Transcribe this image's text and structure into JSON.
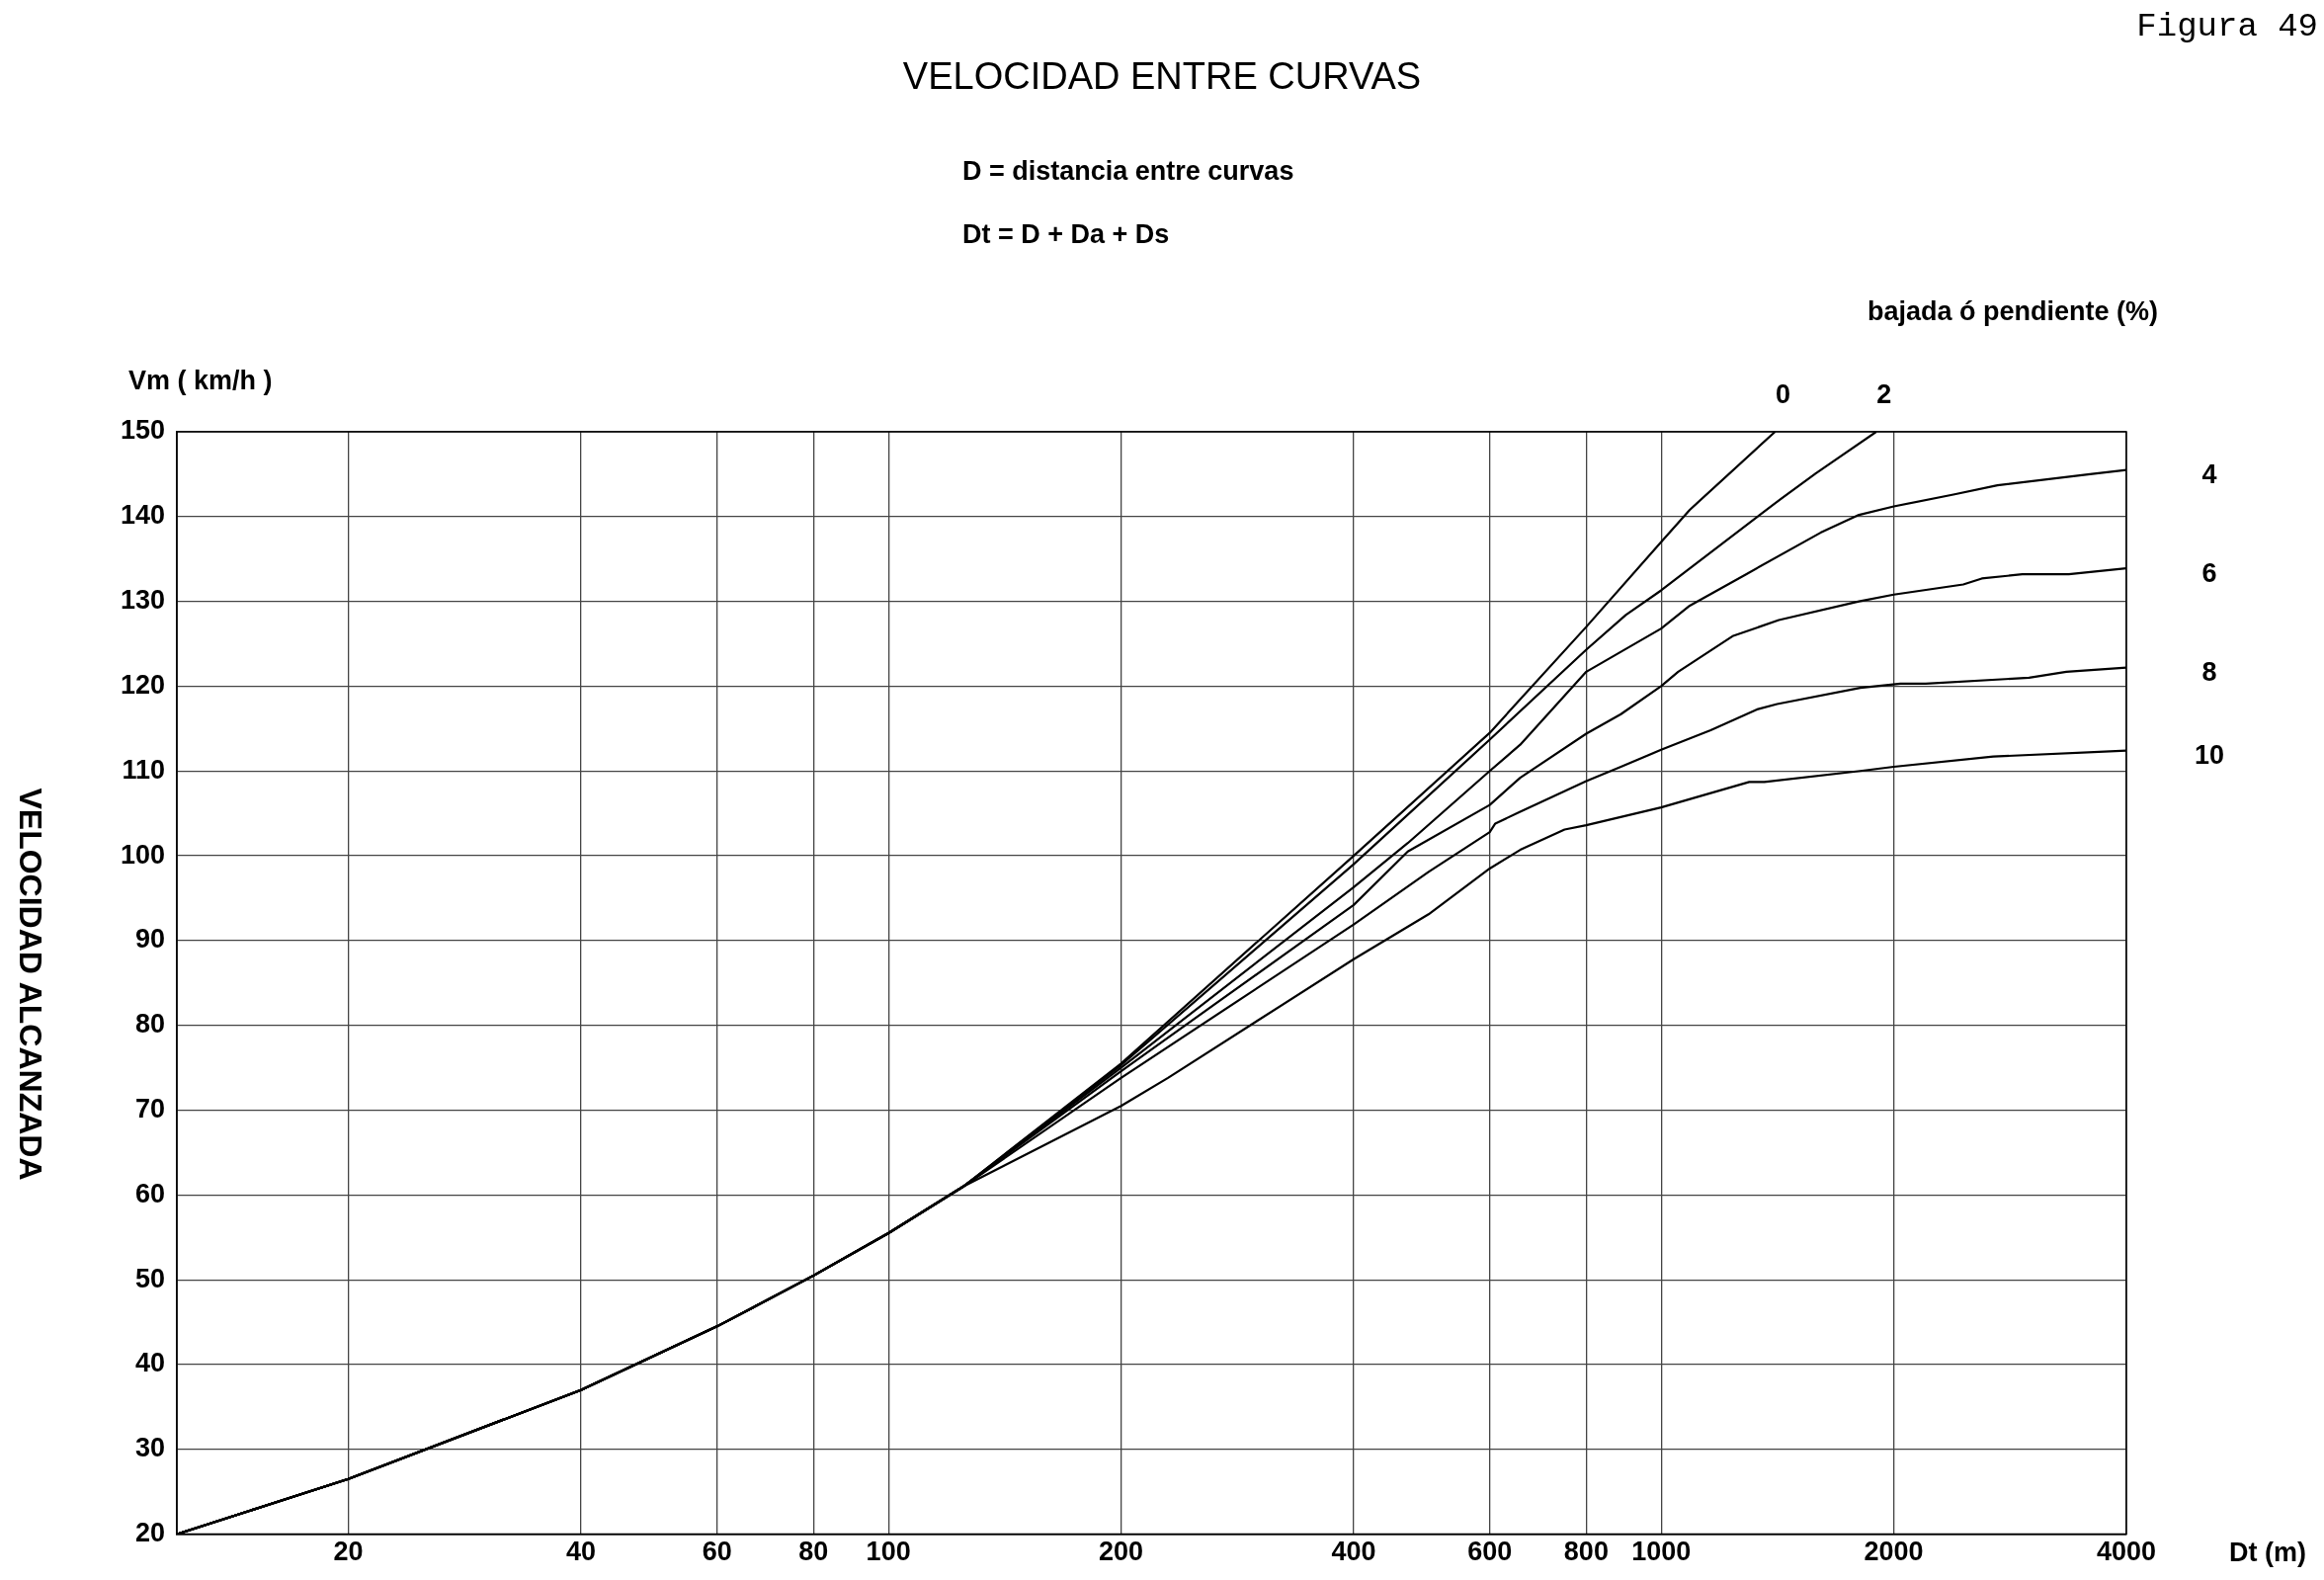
{
  "chart_data": {
    "type": "line",
    "title": "VELOCIDAD ENTRE CURVAS",
    "xlabel": "Dt (m)",
    "ylabel": "VELOCIDAD ALCANZADA",
    "legend_title": "bajada ó pendiente (%)",
    "annotations": [
      "Figura 49",
      "D = distancia entre curvas",
      "Dt = D + Da + Ds",
      "Vm ( km/h )"
    ],
    "log": "x",
    "grid": true,
    "legend": false,
    "marker": "none",
    "line_style": "solid",
    "xlim": [
      12,
      4000
    ],
    "xticks": [
      20,
      40,
      60,
      80,
      100,
      200,
      400,
      600,
      800,
      1000,
      2000,
      4000
    ],
    "ylim": [
      20,
      150
    ],
    "yticks": [
      20,
      30,
      40,
      50,
      60,
      70,
      80,
      90,
      100,
      110,
      120,
      130,
      140,
      150
    ],
    "series": [
      {
        "name": "0",
        "color": "#000000",
        "x": [
          12,
          20,
          40,
          60,
          80,
          100,
          125,
          200,
          400,
          600,
          800,
          1000,
          1089,
          1404
        ],
        "values": [
          20,
          26.5,
          37,
          44.5,
          50.5,
          55.5,
          61,
          75.5,
          100,
          114.5,
          127,
          137,
          140.8,
          150
        ]
      },
      {
        "name": "2",
        "color": "#000000",
        "x": [
          12,
          20,
          40,
          60,
          80,
          100,
          125,
          200,
          400,
          600,
          800,
          900,
          1000,
          1429,
          1585,
          1898
        ],
        "values": [
          20,
          26.5,
          37,
          44.5,
          50.5,
          55.5,
          61,
          75.3,
          99,
          113.7,
          124.3,
          128.4,
          131.3,
          142.1,
          145.1,
          150
        ]
      },
      {
        "name": "4",
        "color": "#000000",
        "x": [
          12,
          20,
          40,
          60,
          80,
          100,
          125,
          200,
          400,
          470,
          600,
          657,
          800,
          1000,
          1089,
          1288,
          1608,
          1803,
          2000,
          2389,
          2724,
          3589,
          4000
        ],
        "values": [
          20,
          26.5,
          37,
          44.5,
          50.5,
          55.5,
          61,
          75,
          96.3,
          101.5,
          110,
          113.1,
          121.7,
          126.8,
          129.5,
          133.2,
          138.1,
          140.2,
          141.2,
          142.6,
          143.7,
          145,
          145.5
        ]
      },
      {
        "name": "6",
        "color": "#000000",
        "x": [
          12,
          20,
          40,
          60,
          80,
          100,
          125,
          200,
          400,
          470,
          600,
          657,
          800,
          887,
          1000,
          1052,
          1237,
          1420,
          1803,
          2000,
          2460,
          2600,
          2933,
          3369,
          4000
        ],
        "values": [
          20,
          26.5,
          37,
          44.5,
          50.5,
          55.5,
          61,
          74.6,
          94.2,
          100.5,
          106,
          109.2,
          114.4,
          116.7,
          120,
          121.7,
          125.9,
          127.8,
          130,
          130.8,
          132,
          132.7,
          133.2,
          133.2,
          133.9
        ]
      },
      {
        "name": "8",
        "color": "#000000",
        "x": [
          12,
          20,
          40,
          60,
          80,
          100,
          125,
          200,
          400,
          500,
          600,
          610,
          657,
          800,
          887,
          1000,
          1159,
          1335,
          1413,
          1810,
          2040,
          2200,
          2993,
          3345,
          4000
        ],
        "values": [
          20,
          26.5,
          37,
          44.5,
          50.5,
          55.5,
          61,
          73.8,
          91.9,
          98.1,
          102.8,
          103.8,
          105.2,
          108.8,
          110.5,
          112.5,
          114.8,
          117.3,
          117.9,
          119.8,
          120.3,
          120.3,
          121,
          121.7,
          122.2
        ]
      },
      {
        "name": "10",
        "color": "#000000",
        "x": [
          12,
          20,
          40,
          60,
          80,
          100,
          125,
          200,
          230,
          400,
          500,
          600,
          657,
          750,
          800,
          1000,
          1110,
          1300,
          1360,
          1810,
          2000,
          2690,
          4000
        ],
        "values": [
          20,
          26.5,
          37,
          44.5,
          50.5,
          55.5,
          61,
          70.5,
          73.8,
          87.8,
          93.1,
          98.5,
          100.7,
          103.1,
          103.6,
          105.7,
          106.9,
          108.7,
          108.7,
          110,
          110.5,
          111.7,
          112.4
        ]
      }
    ]
  }
}
